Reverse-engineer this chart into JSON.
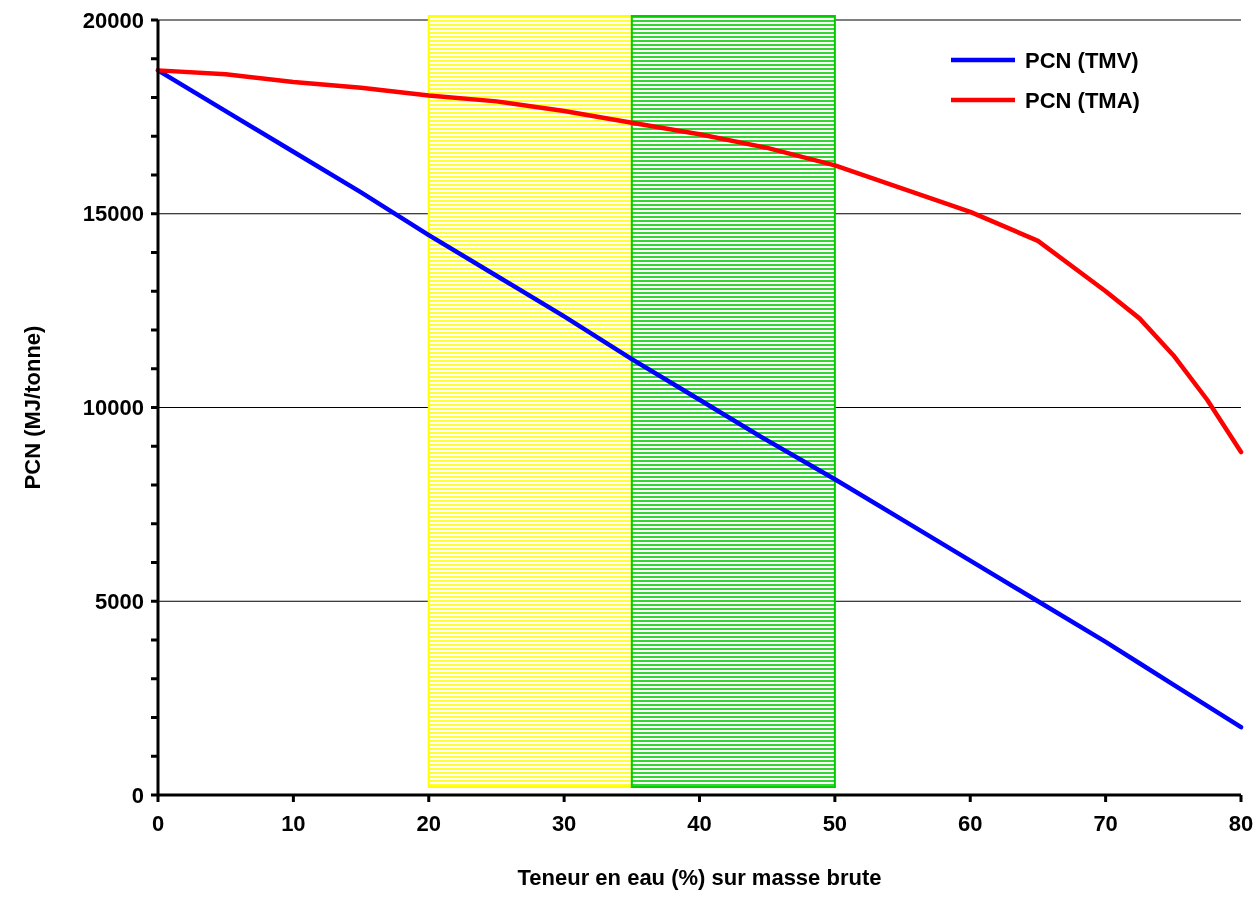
{
  "chart_data": {
    "type": "line",
    "xlabel": "Teneur en eau (%) sur masse brute",
    "ylabel": "PCN (MJ/tonne)",
    "xlim": [
      0,
      80
    ],
    "xticks": [
      0,
      10,
      20,
      30,
      40,
      50,
      60,
      70,
      80
    ],
    "ylim": [
      0,
      20000
    ],
    "yticks": [
      0,
      {
        "value": 1000,
        "label": null
      },
      {
        "value": 2000,
        "label": null
      },
      {
        "value": 3000,
        "label": null
      },
      {
        "value": 4000,
        "label": null
      },
      5000,
      {
        "value": 6000,
        "label": null
      },
      {
        "value": 7000,
        "label": null
      },
      {
        "value": 8000,
        "label": null
      },
      {
        "value": 9000,
        "label": null
      },
      10000,
      {
        "value": 11000,
        "label": null
      },
      {
        "value": 12000,
        "label": null
      },
      {
        "value": 13000,
        "label": null
      },
      {
        "value": 14000,
        "label": null
      },
      15000,
      {
        "value": 16000,
        "label": null
      },
      {
        "value": 17000,
        "label": null
      },
      {
        "value": 18000,
        "label": null
      },
      {
        "value": 19000,
        "label": null
      },
      20000
    ],
    "grid": "y",
    "legend": "top right",
    "marker": "none",
    "line_style": "solid",
    "bands": [
      {
        "axis": "x",
        "from": 20,
        "to": 35,
        "color": "#ffff00"
      },
      {
        "axis": "x",
        "from": 35,
        "to": 50,
        "color": "#00cc00"
      }
    ],
    "x": [
      0,
      5,
      10,
      15,
      20,
      25,
      30,
      35,
      40,
      45,
      50,
      55,
      60,
      65,
      70,
      72.5,
      75,
      77.5,
      80
    ],
    "series": [
      {
        "name": "PCN (TMV)",
        "color": "#0000ff",
        "values": [
          18700,
          17650,
          16600,
          15550,
          14450,
          13400,
          12350,
          11250,
          10200,
          9150,
          8150,
          7100,
          6050,
          5000,
          3950,
          3400,
          2850,
          2300,
          1750
        ]
      },
      {
        "name": "PCN (TMA)",
        "color": "#ff0000",
        "values": [
          18700,
          18600,
          18400,
          18250,
          18050,
          17900,
          17650,
          17350,
          17050,
          16700,
          16250,
          15650,
          15050,
          14300,
          13000,
          12300,
          11350,
          10200,
          8850
        ]
      }
    ]
  }
}
